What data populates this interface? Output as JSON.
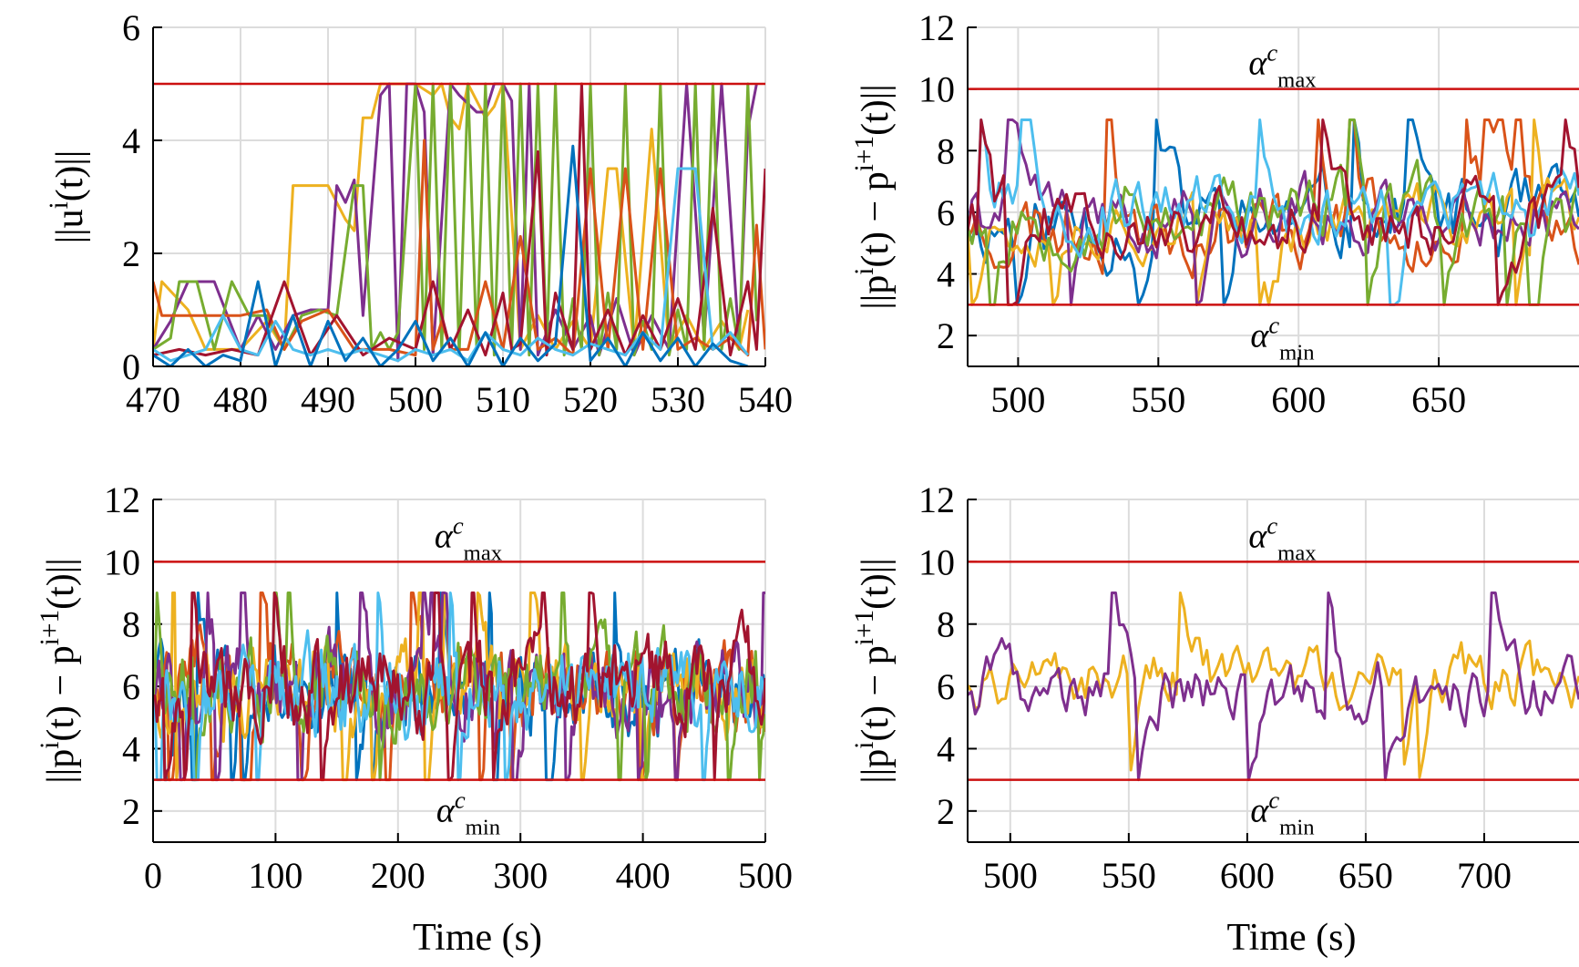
{
  "chart_data": [
    {
      "type": "line",
      "panel": "top-left",
      "ylabel": "||u^i(t)||",
      "xlabel": "",
      "xlim": [
        470,
        540
      ],
      "ylim": [
        0,
        6
      ],
      "xticks": [
        "470",
        "480",
        "490",
        "500",
        "510",
        "520",
        "530",
        "540"
      ],
      "yticks": [
        "0",
        "2",
        "4",
        "6"
      ],
      "grid": true,
      "bound_lines": [
        {
          "y": 5,
          "label": ""
        }
      ],
      "series": [
        {
          "color": "#EDB120",
          "x": [
            470,
            471,
            474,
            476,
            480,
            483,
            485,
            486,
            487,
            490,
            492,
            493,
            494,
            495,
            496,
            497,
            498,
            500,
            502,
            503,
            504,
            505,
            506,
            508,
            509,
            510,
            512,
            514,
            516,
            518,
            520,
            522,
            523,
            525,
            527,
            529,
            531,
            533,
            535,
            537,
            538
          ],
          "values": [
            0.3,
            1.5,
            1.0,
            0.3,
            0.3,
            0.8,
            0.3,
            3.2,
            3.2,
            3.2,
            2.6,
            2.4,
            4.4,
            4.4,
            5.0,
            5.0,
            5.0,
            5.0,
            4.8,
            5.0,
            4.4,
            4.2,
            5.0,
            4.4,
            4.6,
            5.0,
            0.3,
            0.9,
            0.3,
            0.8,
            0.3,
            3.5,
            3.5,
            0.3,
            4.2,
            0.3,
            0.9,
            0.3,
            0.8,
            0.3,
            1.0
          ]
        },
        {
          "color": "#7E2F8E",
          "x": [
            470,
            472,
            474,
            477,
            480,
            482,
            484,
            486,
            488,
            490,
            491,
            492,
            493,
            494,
            496,
            497,
            498,
            499,
            500,
            501,
            502,
            504,
            505,
            507,
            508,
            509,
            510,
            511,
            512,
            513,
            514,
            516,
            518,
            520,
            521,
            523,
            525,
            527,
            529,
            531,
            533,
            535,
            537,
            538,
            539
          ],
          "values": [
            0.3,
            0.8,
            1.5,
            1.5,
            0.3,
            0.9,
            0.3,
            0.9,
            1.0,
            1.0,
            3.2,
            2.9,
            3.3,
            0.9,
            4.8,
            5.0,
            0.1,
            5.0,
            5.0,
            4.5,
            0.2,
            5.0,
            4.8,
            4.5,
            4.5,
            5.0,
            5.0,
            4.7,
            0.3,
            5.0,
            0.2,
            1.0,
            0.3,
            0.9,
            0.2,
            1.2,
            0.2,
            0.9,
            0.3,
            5.0,
            0.5,
            5.0,
            0.4,
            4.2,
            5.0
          ]
        },
        {
          "color": "#77AC30",
          "x": [
            470,
            472,
            473,
            475,
            477,
            479,
            481,
            483,
            485,
            487,
            489,
            491,
            493,
            494,
            495,
            496,
            497,
            498,
            500,
            501,
            502,
            503,
            504,
            505,
            506,
            507,
            508,
            509,
            510,
            511,
            512,
            513,
            514,
            515,
            516,
            517,
            518,
            519,
            520,
            521,
            522,
            523,
            524,
            525,
            526,
            527,
            528,
            529,
            530,
            531,
            532,
            533,
            534,
            535,
            536,
            537,
            538,
            539
          ],
          "values": [
            0.3,
            0.5,
            1.5,
            1.5,
            0.3,
            1.5,
            0.9,
            0.9,
            0.3,
            0.9,
            1.0,
            0.9,
            3.2,
            3.2,
            0.3,
            0.6,
            0.3,
            0.6,
            5.0,
            0.3,
            5.0,
            0.3,
            5.0,
            0.2,
            5.0,
            0.3,
            5.0,
            0.2,
            5.0,
            0.3,
            5.0,
            0.2,
            5.0,
            0.3,
            5.0,
            0.2,
            1.2,
            0.3,
            5.0,
            0.2,
            1.3,
            0.3,
            5.0,
            0.2,
            0.8,
            0.3,
            5.0,
            0.2,
            1.0,
            0.3,
            5.0,
            0.3,
            5.0,
            0.3,
            1.2,
            0.3,
            5.0,
            0.8
          ]
        },
        {
          "color": "#D95319",
          "x": [
            470,
            471,
            472,
            474,
            477,
            480,
            483,
            485,
            487,
            490,
            493,
            495,
            497,
            500,
            501,
            502,
            503,
            504,
            506,
            508,
            510,
            512,
            514,
            516,
            518,
            520,
            522,
            524,
            526,
            528,
            530,
            532,
            534,
            536,
            538,
            539,
            540
          ],
          "values": [
            1.5,
            0.9,
            0.9,
            0.9,
            0.9,
            0.9,
            1.0,
            0.3,
            0.8,
            1.0,
            0.3,
            0.3,
            0.3,
            0.2,
            4.0,
            0.3,
            0.8,
            0.3,
            0.3,
            1.5,
            0.3,
            2.3,
            0.3,
            0.5,
            0.2,
            3.5,
            0.3,
            3.5,
            0.3,
            3.5,
            0.3,
            0.5,
            0.3,
            0.5,
            0.2,
            2.5,
            0.3
          ]
        },
        {
          "color": "#A2142F",
          "x": [
            470,
            473,
            476,
            479,
            482,
            485,
            488,
            491,
            494,
            497,
            500,
            502,
            504,
            506,
            508,
            510,
            511,
            512,
            514,
            515,
            516,
            518,
            519,
            520,
            522,
            524,
            526,
            528,
            530,
            532,
            534,
            536,
            538,
            539,
            540
          ],
          "values": [
            0.2,
            0.3,
            0.2,
            0.3,
            0.2,
            1.5,
            0.2,
            0.9,
            0.2,
            0.5,
            0.3,
            1.5,
            0.3,
            1.0,
            0.2,
            1.3,
            0.3,
            0.4,
            3.8,
            0.2,
            1.3,
            0.3,
            5.0,
            0.3,
            1.0,
            0.2,
            0.9,
            0.3,
            1.2,
            0.3,
            2.8,
            0.2,
            1.5,
            0.3,
            3.5
          ]
        },
        {
          "color": "#4DBEEE",
          "x": [
            470,
            472,
            474,
            476,
            478,
            480,
            482,
            484,
            486,
            488,
            490,
            492,
            494,
            496,
            498,
            500,
            502,
            504,
            506,
            508,
            510,
            512,
            514,
            516,
            518,
            520,
            522,
            524,
            526,
            528,
            530,
            532,
            534,
            536,
            538
          ],
          "values": [
            0.3,
            0.1,
            0.2,
            0.3,
            0.9,
            0.3,
            0.2,
            0.8,
            0.3,
            0.2,
            0.3,
            0.2,
            0.3,
            0.2,
            0.1,
            0.3,
            0.2,
            0.3,
            0.1,
            0.6,
            0.3,
            0.2,
            0.5,
            0.3,
            0.2,
            0.4,
            0.3,
            0.2,
            0.6,
            0.3,
            3.5,
            3.5,
            0.3,
            0.6,
            0.2
          ]
        },
        {
          "color": "#0072BD",
          "x": [
            470,
            472,
            474,
            476,
            478,
            480,
            482,
            484,
            486,
            488,
            490,
            492,
            494,
            496,
            498,
            500,
            502,
            504,
            506,
            508,
            510,
            512,
            514,
            516,
            518,
            520,
            522,
            524,
            526,
            528,
            530,
            532,
            534,
            536,
            538
          ],
          "values": [
            0.2,
            0.0,
            0.3,
            0.0,
            0.2,
            0.1,
            1.5,
            0.0,
            0.9,
            0.0,
            0.8,
            0.1,
            0.5,
            0.0,
            0.3,
            0.8,
            0.1,
            0.5,
            0.0,
            0.6,
            0.0,
            0.5,
            0.1,
            0.4,
            3.9,
            0.1,
            0.5,
            0.0,
            0.6,
            0.1,
            0.5,
            0.0,
            0.4,
            0.1,
            0.0
          ]
        }
      ]
    },
    {
      "type": "line",
      "panel": "top-right",
      "ylabel": "||p^i(t) − p^{i+1}(t)||",
      "xlabel": "",
      "xlim": [
        482,
        700
      ],
      "ylim": [
        1,
        12
      ],
      "xticks": [
        "500",
        "550",
        "600",
        "650"
      ],
      "yticks": [
        "2",
        "4",
        "6",
        "8",
        "10",
        "12"
      ],
      "grid": true,
      "bound_lines": [
        {
          "y": 10,
          "label": "α^c_max"
        },
        {
          "y": 3,
          "label": "α^c_min"
        }
      ],
      "series_generated": true,
      "series": [
        {
          "color": "#0072BD",
          "seed": 11,
          "mean": 5.7,
          "amp": 1.4
        },
        {
          "color": "#D95319",
          "seed": 23,
          "mean": 5.6,
          "amp": 1.3
        },
        {
          "color": "#EDB120",
          "seed": 37,
          "mean": 5.8,
          "amp": 1.1
        },
        {
          "color": "#7E2F8E",
          "seed": 41,
          "mean": 6.0,
          "amp": 1.2
        },
        {
          "color": "#77AC30",
          "seed": 53,
          "mean": 6.0,
          "amp": 1.3
        },
        {
          "color": "#4DBEEE",
          "seed": 67,
          "mean": 6.1,
          "amp": 1.2
        },
        {
          "color": "#A2142F",
          "seed": 79,
          "mean": 5.8,
          "amp": 1.2
        }
      ]
    },
    {
      "type": "line",
      "panel": "bottom-left",
      "ylabel": "||p^i(t) − p^{i+1}(t)||",
      "xlabel": "Time (s)",
      "xlim": [
        0,
        500
      ],
      "ylim": [
        1,
        12
      ],
      "xticks": [
        "0",
        "100",
        "200",
        "300",
        "400",
        "500"
      ],
      "yticks": [
        "2",
        "4",
        "6",
        "8",
        "10",
        "12"
      ],
      "grid": true,
      "bound_lines": [
        {
          "y": 10,
          "label": "α^c_max"
        },
        {
          "y": 3,
          "label": "α^c_min"
        }
      ],
      "series_generated": true,
      "series": [
        {
          "color": "#0072BD",
          "seed": 101,
          "mean": 5.9,
          "amp": 1.4
        },
        {
          "color": "#D95319",
          "seed": 113,
          "mean": 6.1,
          "amp": 1.4
        },
        {
          "color": "#EDB120",
          "seed": 127,
          "mean": 6.0,
          "amp": 1.4
        },
        {
          "color": "#7E2F8E",
          "seed": 131,
          "mean": 6.0,
          "amp": 1.5
        },
        {
          "color": "#77AC30",
          "seed": 149,
          "mean": 6.0,
          "amp": 1.4
        },
        {
          "color": "#4DBEEE",
          "seed": 157,
          "mean": 6.0,
          "amp": 1.4
        },
        {
          "color": "#A2142F",
          "seed": 163,
          "mean": 6.1,
          "amp": 1.4
        }
      ]
    },
    {
      "type": "line",
      "panel": "bottom-right",
      "ylabel": "||p^i(t) − p^{i+1}(t)||",
      "xlabel": "Time (s)",
      "xlim": [
        482,
        740
      ],
      "ylim": [
        1,
        12
      ],
      "xticks": [
        "500",
        "550",
        "600",
        "650",
        "700"
      ],
      "yticks": [
        "2",
        "4",
        "6",
        "8",
        "10",
        "12"
      ],
      "grid": true,
      "bound_lines": [
        {
          "y": 10,
          "label": "α^c_max"
        },
        {
          "y": 3,
          "label": "α^c_min"
        }
      ],
      "series_generated": true,
      "series": [
        {
          "color": "#EDB120",
          "seed": 211,
          "mean": 6.3,
          "amp": 1.0
        },
        {
          "color": "#7E2F8E",
          "seed": 223,
          "mean": 6.0,
          "amp": 1.1
        }
      ]
    }
  ]
}
